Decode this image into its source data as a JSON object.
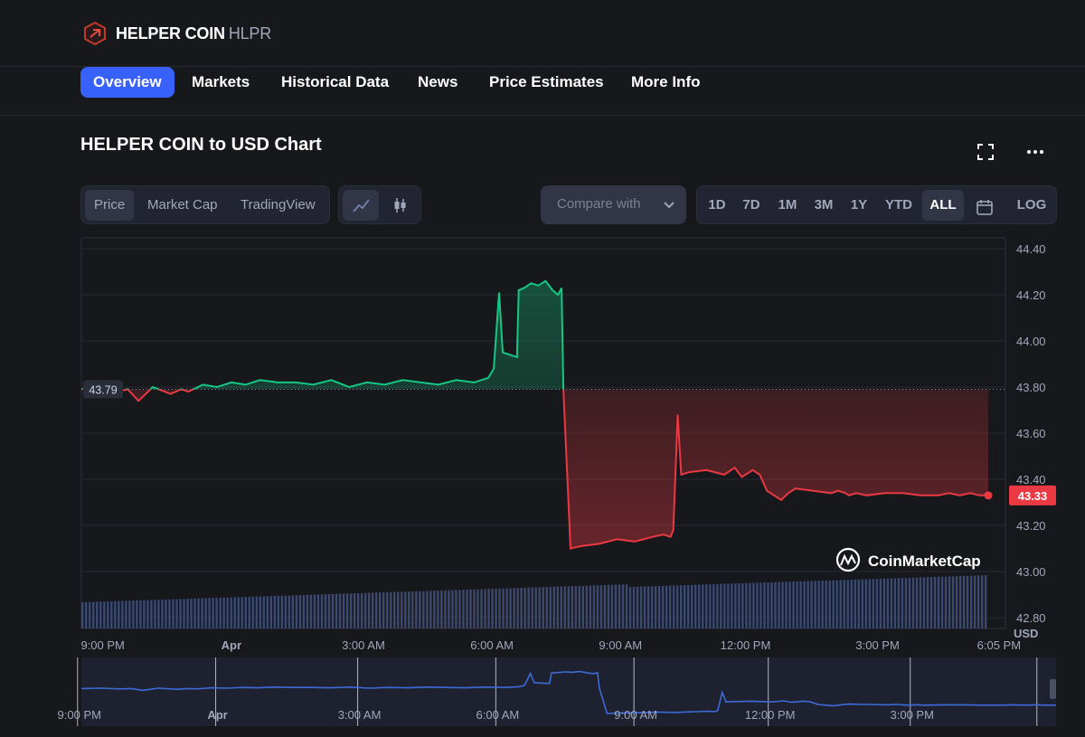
{
  "header": {
    "coin_name": "HELPER COIN",
    "coin_symbol": "HLPR"
  },
  "nav": {
    "tabs": [
      {
        "label": "Overview",
        "active": true
      },
      {
        "label": "Markets",
        "active": false
      },
      {
        "label": "Historical Data",
        "active": false
      },
      {
        "label": "News",
        "active": false
      },
      {
        "label": "Price Estimates",
        "active": false
      },
      {
        "label": "More Info",
        "active": false
      }
    ]
  },
  "chart_header": {
    "title": "HELPER COIN to USD Chart",
    "fullscreen_icon": "fullscreen-icon",
    "more_icon": "more-icon"
  },
  "toolbar": {
    "type_tabs": [
      "Price",
      "Market Cap",
      "TradingView"
    ],
    "active_type": "Price",
    "view_icons": [
      "line-chart-icon",
      "candlestick-icon"
    ],
    "compare_placeholder": "Compare with",
    "ranges": [
      "1D",
      "7D",
      "1M",
      "3M",
      "1Y",
      "YTD",
      "ALL"
    ],
    "active_range": "ALL",
    "calendar_icon": "calendar-icon",
    "log_label": "LOG"
  },
  "colors": {
    "up": "#16c784",
    "down": "#ea3943",
    "accent": "#3861fb",
    "volume": "#3b4a73",
    "brush_line": "#3d6ad6"
  },
  "chart_data": {
    "type": "line",
    "title": "HELPER COIN to USD Chart",
    "ylabel": "USD",
    "ylim": [
      42.8,
      44.4
    ],
    "y_ticks": [
      "44.40",
      "44.20",
      "44.00",
      "43.80",
      "43.60",
      "43.40",
      "43.20",
      "43.00",
      "42.80"
    ],
    "x_ticks": [
      "9:00 PM",
      "Apr",
      "3:00 AM",
      "6:00 AM",
      "9:00 AM",
      "12:00 PM",
      "3:00 PM",
      "6:05 PM"
    ],
    "start_price_label": "43.79",
    "start_price": 43.79,
    "last_price_label": "43.33",
    "last_price": 43.33,
    "watermark": "CoinMarketCap",
    "x_hours": [
      0,
      0.5,
      1,
      1.3,
      1.6,
      2,
      2.5,
      2.8,
      3,
      3.4,
      3.8,
      4.2,
      4.6,
      5,
      5.5,
      6,
      6.5,
      7,
      7.5,
      8,
      8.5,
      9,
      9.5,
      10,
      10.5,
      11,
      11.4,
      11.55,
      11.7,
      11.8,
      12,
      12.2,
      12.25,
      12.4,
      12.6,
      12.8,
      13,
      13.2,
      13.35,
      13.45,
      13.5,
      13.7,
      14,
      14.5,
      15,
      15.5,
      16,
      16.3,
      16.5,
      16.58,
      16.7,
      16.8,
      17,
      17.5,
      18,
      18.3,
      18.5,
      18.8,
      19,
      19.2,
      19.4,
      19.6,
      19.8,
      20,
      20.5,
      21,
      21.2,
      21.4,
      21.5,
      21.7,
      22,
      22.5,
      23,
      23.5,
      24,
      24.3,
      24.6,
      24.9,
      25.15,
      25.4
    ],
    "prices": [
      43.79,
      43.8,
      43.78,
      43.79,
      43.74,
      43.8,
      43.77,
      43.79,
      43.78,
      43.81,
      43.8,
      43.82,
      43.81,
      43.83,
      43.82,
      43.82,
      43.81,
      43.83,
      43.8,
      43.82,
      43.81,
      43.83,
      43.82,
      43.81,
      43.83,
      43.82,
      43.84,
      43.88,
      44.21,
      43.95,
      43.94,
      43.93,
      44.22,
      44.23,
      44.25,
      44.24,
      44.26,
      44.22,
      44.2,
      44.23,
      43.79,
      43.1,
      43.11,
      43.12,
      43.14,
      43.13,
      43.15,
      43.16,
      43.15,
      43.18,
      43.68,
      43.42,
      43.43,
      43.44,
      43.42,
      43.45,
      43.41,
      43.44,
      43.42,
      43.35,
      43.33,
      43.31,
      43.34,
      43.36,
      43.35,
      43.34,
      43.35,
      43.34,
      43.33,
      43.34,
      43.33,
      43.34,
      43.34,
      43.33,
      43.33,
      43.34,
      43.33,
      43.34,
      43.33,
      43.33
    ],
    "x_ticks_hours": [
      0.6,
      4.2,
      7.9,
      11.5,
      15.1,
      18.6,
      22.3,
      25.7
    ],
    "x_range_hours": [
      0,
      25.4
    ],
    "brush_ticks": [
      "9:00 PM",
      "Apr",
      "3:00 AM",
      "6:00 AM",
      "9:00 AM",
      "12:00 PM",
      "3:00 PM"
    ]
  }
}
